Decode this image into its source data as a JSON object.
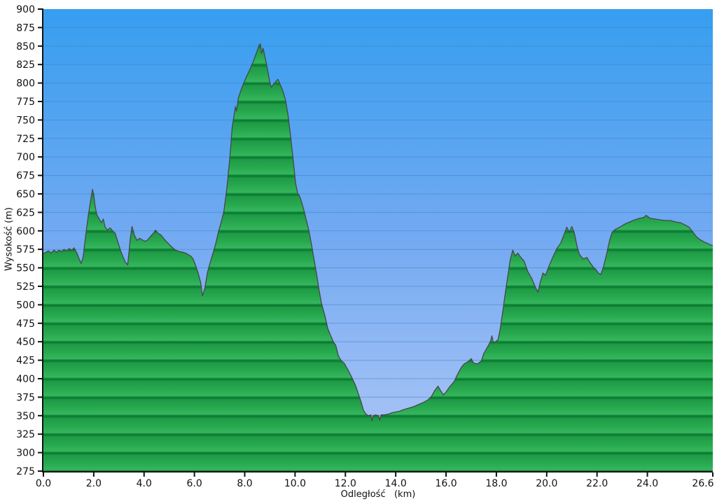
{
  "chart": {
    "y_axis_title": "Wysokość (m)",
    "x_axis_title": "Odległość   (km)",
    "colors": {
      "background": "#ffffff",
      "sky_top": "#369EF0",
      "sky_mid": "#74AAF1",
      "sky_low": "#9FBFF5",
      "sky_bottom": "#ABC8F7",
      "sky_gridline": "#3D7BC0",
      "green_band_line": "#0D7D35",
      "green_dark": "#1E9B45",
      "green_mid": "#27A84F",
      "green_light": "#35B65D",
      "profile_outline": "#474747",
      "axis": "#111111",
      "tick_text": "#111111"
    }
  },
  "chart_data": {
    "type": "area",
    "title": "",
    "xlabel": "Odległość   (km)",
    "ylabel": "Wysokość (m)",
    "xlim": [
      0,
      26.6
    ],
    "ylim": [
      275,
      900
    ],
    "grid": "horizontal",
    "legend": "none",
    "y_ticks": [
      900,
      875,
      850,
      825,
      800,
      775,
      750,
      725,
      700,
      675,
      650,
      625,
      600,
      575,
      550,
      525,
      500,
      475,
      450,
      425,
      400,
      375,
      350,
      325,
      300,
      275
    ],
    "x_tick_values": [
      0,
      2,
      4,
      6,
      8,
      10,
      12,
      14,
      16,
      18,
      20,
      22,
      24,
      26.6
    ],
    "x_tick_labels": [
      "0.0",
      "2.0",
      "4.0",
      "6.0",
      "8.0",
      "10.0",
      "12.0",
      "14.0",
      "16.0",
      "18.0",
      "20.0",
      "22.0",
      "24.0",
      "26.6"
    ],
    "points": [
      [
        0,
        569
      ],
      [
        0.1,
        571
      ],
      [
        0.2,
        573
      ],
      [
        0.3,
        570
      ],
      [
        0.42,
        574
      ],
      [
        0.52,
        571
      ],
      [
        0.62,
        574
      ],
      [
        0.72,
        572
      ],
      [
        0.82,
        575
      ],
      [
        0.92,
        573
      ],
      [
        1.02,
        576
      ],
      [
        1.12,
        574
      ],
      [
        1.22,
        577
      ],
      [
        1.32,
        571
      ],
      [
        1.42,
        562
      ],
      [
        1.5,
        556
      ],
      [
        1.58,
        565
      ],
      [
        1.68,
        594
      ],
      [
        1.78,
        620
      ],
      [
        1.88,
        642
      ],
      [
        1.95,
        656
      ],
      [
        2.0,
        649
      ],
      [
        2.05,
        634
      ],
      [
        2.12,
        622
      ],
      [
        2.2,
        617
      ],
      [
        2.3,
        611
      ],
      [
        2.38,
        616
      ],
      [
        2.45,
        605
      ],
      [
        2.55,
        601
      ],
      [
        2.65,
        604
      ],
      [
        2.75,
        600
      ],
      [
        2.85,
        597
      ],
      [
        2.95,
        586
      ],
      [
        3.05,
        575
      ],
      [
        3.15,
        566
      ],
      [
        3.25,
        558
      ],
      [
        3.35,
        554
      ],
      [
        3.45,
        589
      ],
      [
        3.52,
        606
      ],
      [
        3.62,
        594
      ],
      [
        3.72,
        587
      ],
      [
        3.82,
        590
      ],
      [
        3.92,
        588
      ],
      [
        4.02,
        586
      ],
      [
        4.12,
        587
      ],
      [
        4.25,
        592
      ],
      [
        4.4,
        598
      ],
      [
        4.45,
        601
      ],
      [
        4.55,
        597
      ],
      [
        4.68,
        594
      ],
      [
        4.82,
        588
      ],
      [
        4.96,
        583
      ],
      [
        5.1,
        578
      ],
      [
        5.25,
        574
      ],
      [
        5.4,
        572
      ],
      [
        5.55,
        571
      ],
      [
        5.7,
        569
      ],
      [
        5.85,
        566
      ],
      [
        5.95,
        562
      ],
      [
        6.05,
        553
      ],
      [
        6.15,
        543
      ],
      [
        6.25,
        530
      ],
      [
        6.32,
        512
      ],
      [
        6.42,
        523
      ],
      [
        6.52,
        544
      ],
      [
        6.62,
        556
      ],
      [
        6.73,
        569
      ],
      [
        6.85,
        583
      ],
      [
        6.95,
        598
      ],
      [
        7.06,
        611
      ],
      [
        7.17,
        626
      ],
      [
        7.3,
        661
      ],
      [
        7.42,
        704
      ],
      [
        7.5,
        739
      ],
      [
        7.57,
        755
      ],
      [
        7.63,
        768
      ],
      [
        7.67,
        762
      ],
      [
        7.75,
        780
      ],
      [
        7.9,
        795
      ],
      [
        8.05,
        807
      ],
      [
        8.2,
        818
      ],
      [
        8.35,
        830
      ],
      [
        8.5,
        844
      ],
      [
        8.57,
        851
      ],
      [
        8.62,
        853
      ],
      [
        8.67,
        840
      ],
      [
        8.73,
        847
      ],
      [
        8.8,
        836
      ],
      [
        8.9,
        819
      ],
      [
        9.0,
        800
      ],
      [
        9.06,
        794
      ],
      [
        9.16,
        799
      ],
      [
        9.26,
        803
      ],
      [
        9.32,
        805
      ],
      [
        9.42,
        797
      ],
      [
        9.52,
        789
      ],
      [
        9.62,
        777
      ],
      [
        9.72,
        757
      ],
      [
        9.82,
        729
      ],
      [
        9.92,
        698
      ],
      [
        10.02,
        665
      ],
      [
        10.1,
        651
      ],
      [
        10.17,
        648
      ],
      [
        10.25,
        640
      ],
      [
        10.35,
        628
      ],
      [
        10.45,
        614
      ],
      [
        10.55,
        600
      ],
      [
        10.65,
        582
      ],
      [
        10.75,
        562
      ],
      [
        10.85,
        543
      ],
      [
        10.95,
        521
      ],
      [
        11.05,
        502
      ],
      [
        11.18,
        486
      ],
      [
        11.3,
        468
      ],
      [
        11.42,
        458
      ],
      [
        11.52,
        450
      ],
      [
        11.62,
        445
      ],
      [
        11.72,
        431
      ],
      [
        11.82,
        425
      ],
      [
        11.95,
        421
      ],
      [
        12.1,
        412
      ],
      [
        12.25,
        402
      ],
      [
        12.4,
        391
      ],
      [
        12.52,
        379
      ],
      [
        12.62,
        369
      ],
      [
        12.72,
        357
      ],
      [
        12.82,
        352
      ],
      [
        12.92,
        350
      ],
      [
        13.02,
        351
      ],
      [
        13.06,
        343
      ],
      [
        13.1,
        350
      ],
      [
        13.2,
        351
      ],
      [
        13.32,
        350
      ],
      [
        13.36,
        344
      ],
      [
        13.42,
        351
      ],
      [
        13.55,
        351
      ],
      [
        13.7,
        352
      ],
      [
        13.85,
        354
      ],
      [
        14.0,
        355
      ],
      [
        14.15,
        356
      ],
      [
        14.3,
        358
      ],
      [
        14.5,
        360
      ],
      [
        14.7,
        362
      ],
      [
        14.9,
        365
      ],
      [
        15.1,
        368
      ],
      [
        15.27,
        371
      ],
      [
        15.42,
        376
      ],
      [
        15.55,
        384
      ],
      [
        15.68,
        390
      ],
      [
        15.78,
        384
      ],
      [
        15.9,
        378
      ],
      [
        16.0,
        382
      ],
      [
        16.12,
        388
      ],
      [
        16.22,
        392
      ],
      [
        16.32,
        396
      ],
      [
        16.42,
        403
      ],
      [
        16.52,
        410
      ],
      [
        16.62,
        416
      ],
      [
        16.72,
        420
      ],
      [
        16.87,
        423
      ],
      [
        17.0,
        427
      ],
      [
        17.1,
        421
      ],
      [
        17.25,
        420
      ],
      [
        17.4,
        424
      ],
      [
        17.5,
        434
      ],
      [
        17.6,
        440
      ],
      [
        17.7,
        446
      ],
      [
        17.78,
        452
      ],
      [
        17.82,
        458
      ],
      [
        17.88,
        449
      ],
      [
        17.97,
        450
      ],
      [
        18.07,
        453
      ],
      [
        18.15,
        467
      ],
      [
        18.25,
        490
      ],
      [
        18.35,
        515
      ],
      [
        18.45,
        538
      ],
      [
        18.55,
        561
      ],
      [
        18.65,
        574
      ],
      [
        18.75,
        566
      ],
      [
        18.85,
        570
      ],
      [
        18.95,
        565
      ],
      [
        19.1,
        559
      ],
      [
        19.25,
        545
      ],
      [
        19.4,
        536
      ],
      [
        19.55,
        524
      ],
      [
        19.65,
        517
      ],
      [
        19.75,
        531
      ],
      [
        19.85,
        543
      ],
      [
        19.95,
        540
      ],
      [
        20.1,
        553
      ],
      [
        20.25,
        565
      ],
      [
        20.4,
        576
      ],
      [
        20.55,
        583
      ],
      [
        20.7,
        596
      ],
      [
        20.8,
        605
      ],
      [
        20.9,
        598
      ],
      [
        21.0,
        606
      ],
      [
        21.1,
        597
      ],
      [
        21.2,
        580
      ],
      [
        21.3,
        568
      ],
      [
        21.45,
        562
      ],
      [
        21.6,
        564
      ],
      [
        21.72,
        557
      ],
      [
        21.85,
        551
      ],
      [
        21.95,
        548
      ],
      [
        22.05,
        543
      ],
      [
        22.15,
        541
      ],
      [
        22.27,
        553
      ],
      [
        22.4,
        572
      ],
      [
        22.5,
        587
      ],
      [
        22.6,
        598
      ],
      [
        22.72,
        602
      ],
      [
        22.85,
        604
      ],
      [
        23.0,
        607
      ],
      [
        23.15,
        610
      ],
      [
        23.3,
        612
      ],
      [
        23.5,
        615
      ],
      [
        23.7,
        617
      ],
      [
        23.85,
        618
      ],
      [
        23.95,
        621
      ],
      [
        24.1,
        617
      ],
      [
        24.3,
        616
      ],
      [
        24.5,
        615
      ],
      [
        24.72,
        614
      ],
      [
        24.92,
        614
      ],
      [
        25.12,
        612
      ],
      [
        25.32,
        611
      ],
      [
        25.5,
        608
      ],
      [
        25.65,
        605
      ],
      [
        25.8,
        599
      ],
      [
        25.95,
        592
      ],
      [
        26.1,
        588
      ],
      [
        26.25,
        585
      ],
      [
        26.4,
        583
      ],
      [
        26.5,
        581
      ],
      [
        26.6,
        580
      ]
    ]
  }
}
